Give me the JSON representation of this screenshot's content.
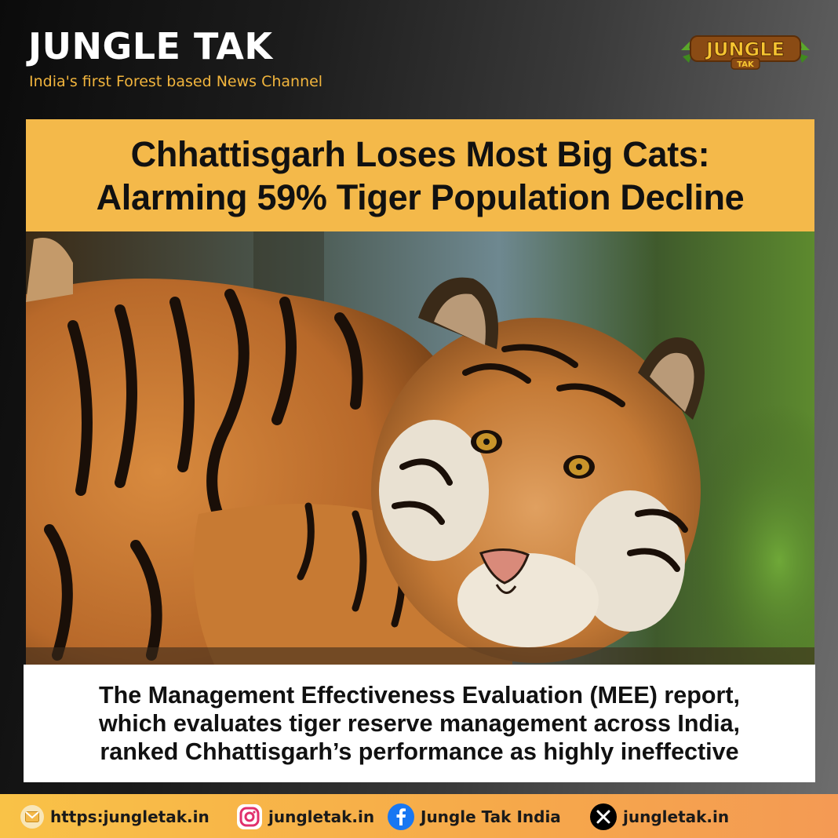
{
  "header": {
    "title": "JUNGLE TAK",
    "tagline": "India's first Forest based News Channel",
    "logo": {
      "text": "JUNGLE",
      "subtext": "TAK"
    }
  },
  "headline": {
    "line1": "Chhattisgarh Loses Most Big Cats:",
    "line2": "Alarming 59% Tiger Population Decline"
  },
  "photo": {
    "subject": "tiger"
  },
  "caption": {
    "line1": "The Management Effectiveness Evaluation (MEE) report,",
    "line2": "which evaluates tiger reserve management across India,",
    "line3": "ranked Chhattisgarh’s performance as highly ineffective"
  },
  "footer": {
    "website": {
      "icon": "mail-icon",
      "text": "https:jungletak.in"
    },
    "instagram": {
      "icon": "instagram-icon",
      "text": "jungletak.in"
    },
    "facebook": {
      "icon": "facebook-icon",
      "text": "Jungle Tak India"
    },
    "x": {
      "icon": "x-icon",
      "text": "jungletak.in"
    }
  },
  "colors": {
    "accent": "#f4b94a",
    "tagline": "#f2b53d",
    "footer_start": "#f9c247",
    "footer_end": "#f49a54"
  }
}
